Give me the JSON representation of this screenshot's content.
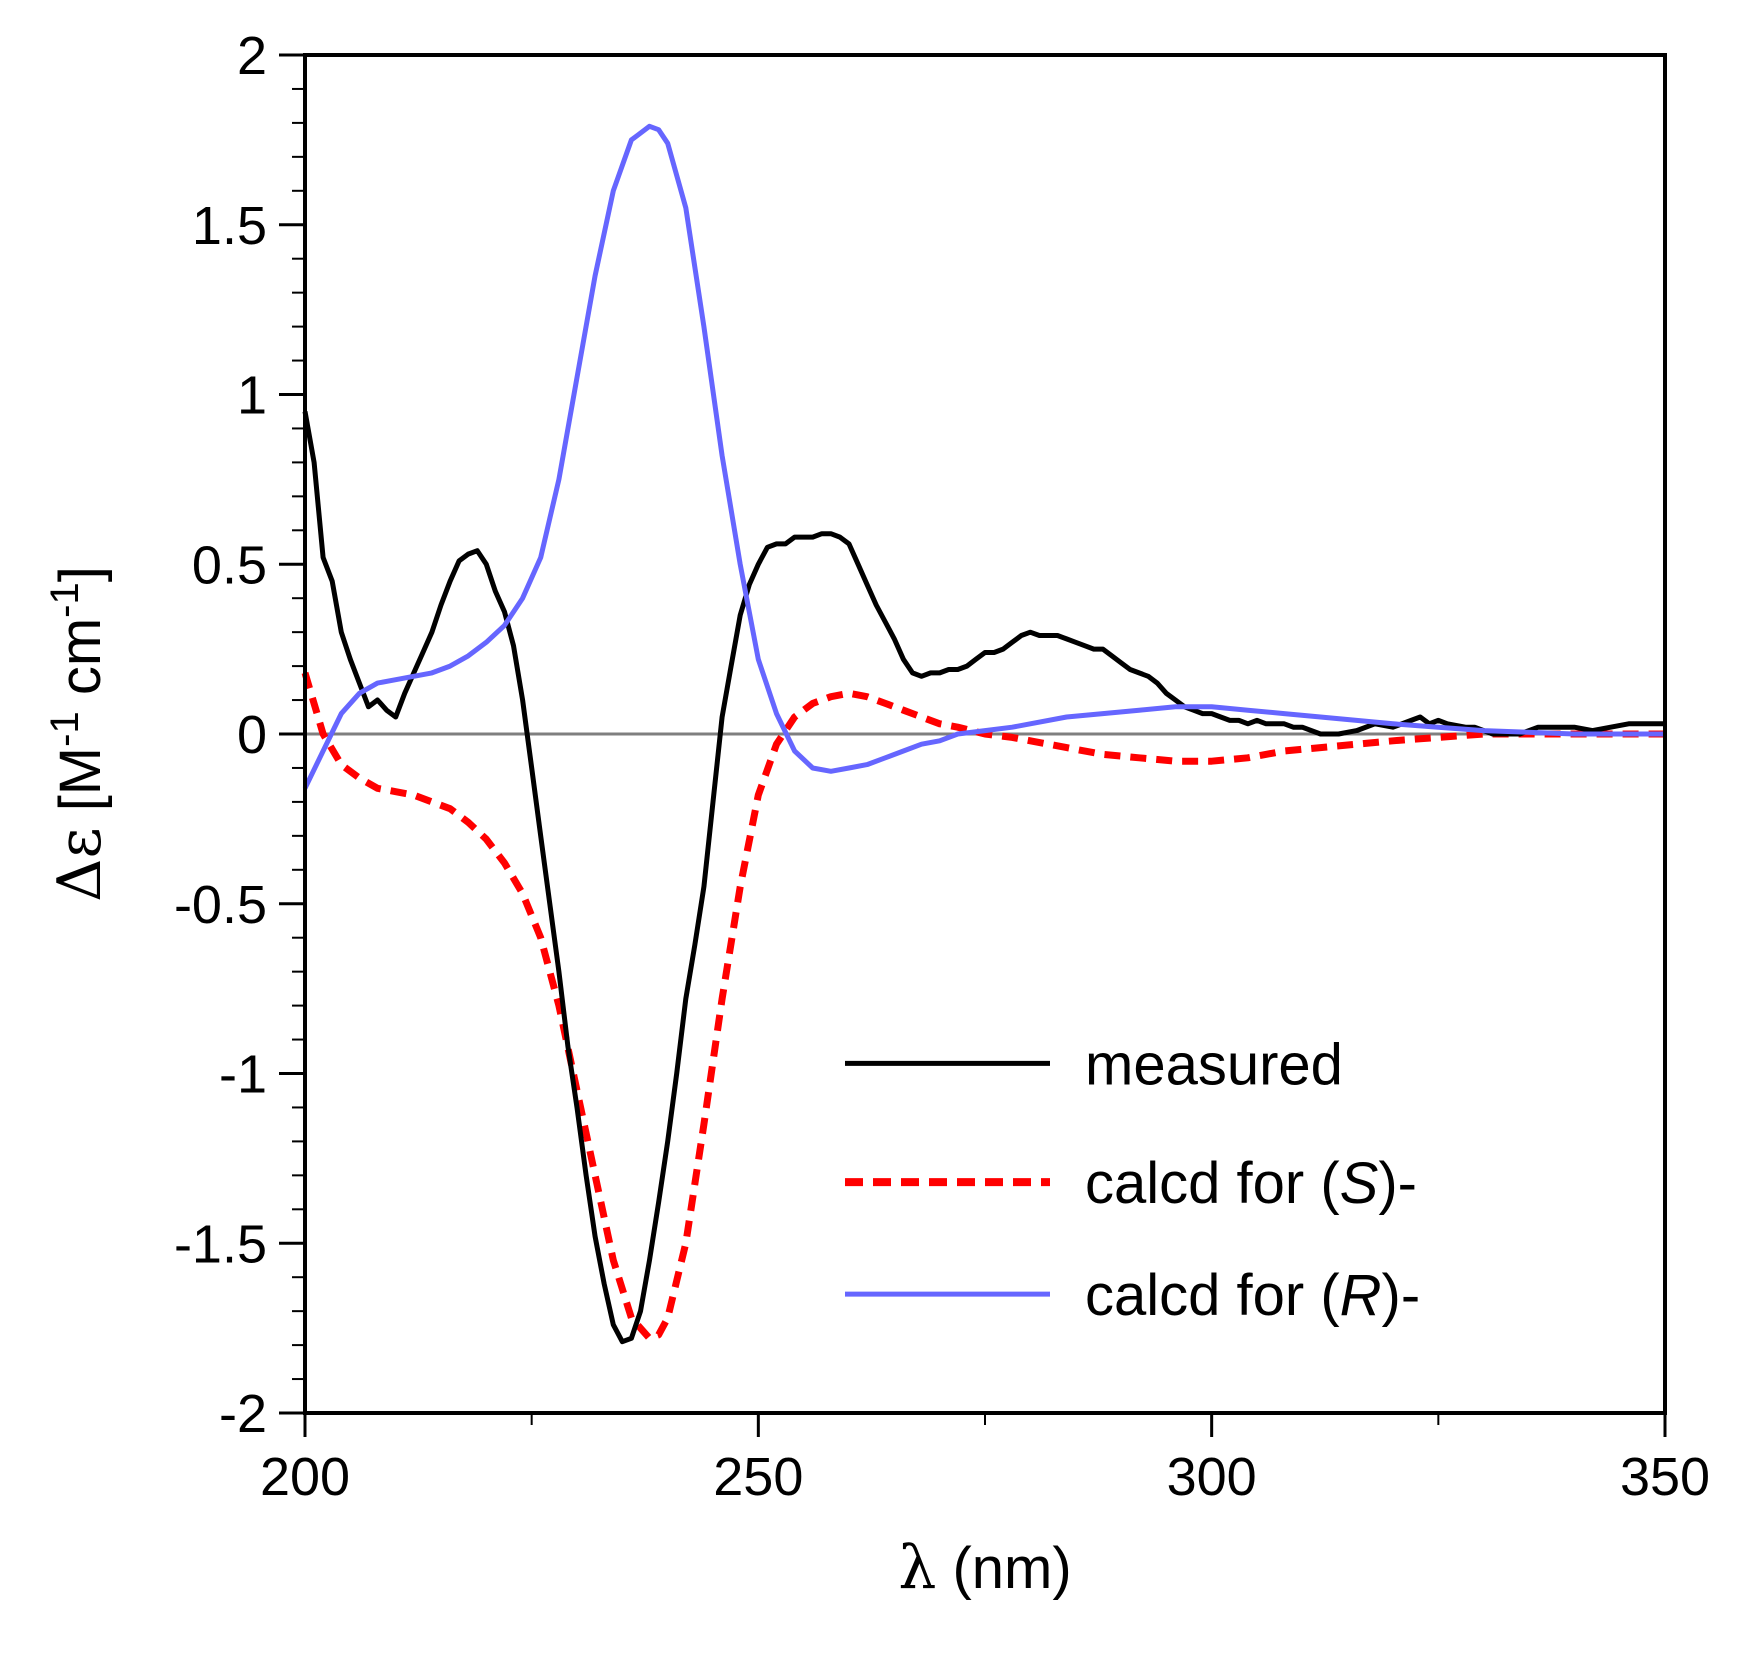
{
  "chart_data": {
    "type": "line",
    "title": "",
    "xlabel_symbol": "λ",
    "xlabel_unit": " (nm)",
    "ylabel_symbol": "Δε",
    "ylabel_unit_a": " [M",
    "ylabel_exp_a": "-1",
    "ylabel_unit_b": " cm",
    "ylabel_exp_b": "-1",
    "ylabel_unit_c": "]",
    "xlim": [
      200,
      350
    ],
    "ylim": [
      -2,
      2
    ],
    "xticks": [
      200,
      250,
      300,
      350
    ],
    "xtick_labels": [
      "200",
      "250",
      "300",
      "350"
    ],
    "yticks": [
      -2,
      -1.5,
      -1,
      -0.5,
      0,
      0.5,
      1,
      1.5,
      2
    ],
    "ytick_labels": [
      "-2",
      "-1.5",
      "-1",
      "-0.5",
      "0",
      "0.5",
      "1",
      "1.5",
      "2"
    ],
    "zero_line_color": "#7f7f7f",
    "legend_position": "bottom-right",
    "series": [
      {
        "name": "measured",
        "color": "#000000",
        "style": "solid",
        "x": [
          200,
          201,
          202,
          203,
          204,
          205,
          206,
          207,
          208,
          209,
          210,
          211,
          212,
          213,
          214,
          215,
          216,
          217,
          218,
          219,
          220,
          221,
          222,
          223,
          224,
          225,
          226,
          227,
          228,
          229,
          230,
          231,
          232,
          233,
          234,
          235,
          236,
          237,
          238,
          239,
          240,
          241,
          242,
          243,
          244,
          245,
          246,
          247,
          248,
          249,
          250,
          251,
          252,
          253,
          254,
          255,
          256,
          257,
          258,
          259,
          260,
          261,
          262,
          263,
          264,
          265,
          266,
          267,
          268,
          269,
          270,
          271,
          272,
          273,
          274,
          275,
          276,
          277,
          278,
          279,
          280,
          281,
          282,
          283,
          284,
          285,
          286,
          287,
          288,
          289,
          290,
          291,
          292,
          293,
          294,
          295,
          296,
          297,
          298,
          299,
          300,
          301,
          302,
          303,
          304,
          305,
          306,
          307,
          308,
          309,
          310,
          312,
          314,
          316,
          318,
          320,
          322,
          323,
          324,
          325,
          326,
          328,
          329,
          330,
          331,
          332,
          333,
          334,
          335,
          336,
          338,
          340,
          342,
          344,
          346,
          348,
          350
        ],
        "y": [
          0.95,
          0.8,
          0.52,
          0.45,
          0.3,
          0.22,
          0.15,
          0.08,
          0.1,
          0.07,
          0.05,
          0.12,
          0.18,
          0.24,
          0.3,
          0.38,
          0.45,
          0.51,
          0.53,
          0.54,
          0.5,
          0.42,
          0.36,
          0.26,
          0.1,
          -0.1,
          -0.3,
          -0.5,
          -0.7,
          -0.92,
          -1.1,
          -1.3,
          -1.48,
          -1.62,
          -1.74,
          -1.79,
          -1.78,
          -1.7,
          -1.55,
          -1.38,
          -1.2,
          -1.0,
          -0.78,
          -0.62,
          -0.45,
          -0.2,
          0.05,
          0.2,
          0.35,
          0.44,
          0.5,
          0.55,
          0.56,
          0.56,
          0.58,
          0.58,
          0.58,
          0.59,
          0.59,
          0.58,
          0.56,
          0.5,
          0.44,
          0.38,
          0.33,
          0.28,
          0.22,
          0.18,
          0.17,
          0.18,
          0.18,
          0.19,
          0.19,
          0.2,
          0.22,
          0.24,
          0.24,
          0.25,
          0.27,
          0.29,
          0.3,
          0.29,
          0.29,
          0.29,
          0.28,
          0.27,
          0.26,
          0.25,
          0.25,
          0.23,
          0.21,
          0.19,
          0.18,
          0.17,
          0.15,
          0.12,
          0.1,
          0.08,
          0.07,
          0.06,
          0.06,
          0.05,
          0.04,
          0.04,
          0.03,
          0.04,
          0.03,
          0.03,
          0.03,
          0.02,
          0.02,
          0.0,
          0.0,
          0.01,
          0.03,
          0.02,
          0.04,
          0.05,
          0.03,
          0.04,
          0.03,
          0.02,
          0.02,
          0.01,
          0.0,
          0.0,
          0.0,
          0.0,
          0.01,
          0.02,
          0.02,
          0.02,
          0.01,
          0.02,
          0.03,
          0.03,
          0.03
        ]
      },
      {
        "name": "calcd for (S)-",
        "legend_prefix": "calcd for (",
        "legend_italic": "S",
        "legend_suffix": ")-",
        "color": "#ff0000",
        "style": "dashed",
        "x": [
          200,
          202,
          204,
          206,
          208,
          210,
          212,
          214,
          216,
          218,
          220,
          222,
          224,
          226,
          228,
          230,
          232,
          234,
          236,
          238,
          239,
          240,
          242,
          244,
          246,
          248,
          250,
          252,
          254,
          256,
          258,
          260,
          262,
          264,
          266,
          268,
          270,
          272,
          275,
          278,
          280,
          284,
          288,
          292,
          296,
          300,
          304,
          308,
          312,
          316,
          320,
          325,
          330,
          340,
          350
        ],
        "y": [
          0.18,
          0.0,
          -0.09,
          -0.13,
          -0.16,
          -0.17,
          -0.18,
          -0.2,
          -0.22,
          -0.26,
          -0.31,
          -0.38,
          -0.47,
          -0.6,
          -0.8,
          -1.05,
          -1.3,
          -1.55,
          -1.72,
          -1.78,
          -1.77,
          -1.72,
          -1.5,
          -1.15,
          -0.78,
          -0.45,
          -0.18,
          -0.03,
          0.05,
          0.09,
          0.11,
          0.12,
          0.11,
          0.09,
          0.07,
          0.05,
          0.03,
          0.02,
          0.0,
          -0.01,
          -0.02,
          -0.04,
          -0.06,
          -0.07,
          -0.08,
          -0.08,
          -0.07,
          -0.05,
          -0.04,
          -0.03,
          -0.02,
          -0.01,
          0.0,
          0.0,
          0.0
        ]
      },
      {
        "name": "calcd for (R)-",
        "legend_prefix": "calcd for (",
        "legend_italic": "R",
        "legend_suffix": ")-",
        "color": "#6666ff",
        "style": "solid",
        "x": [
          200,
          202,
          204,
          206,
          208,
          210,
          212,
          214,
          216,
          218,
          220,
          222,
          224,
          226,
          228,
          230,
          232,
          234,
          236,
          238,
          239,
          240,
          242,
          244,
          246,
          248,
          250,
          252,
          254,
          256,
          258,
          260,
          262,
          264,
          266,
          268,
          270,
          272,
          275,
          278,
          280,
          284,
          288,
          292,
          296,
          300,
          304,
          308,
          312,
          316,
          320,
          325,
          330,
          340,
          350
        ],
        "y": [
          -0.16,
          -0.05,
          0.06,
          0.12,
          0.15,
          0.16,
          0.17,
          0.18,
          0.2,
          0.23,
          0.27,
          0.32,
          0.4,
          0.52,
          0.75,
          1.05,
          1.35,
          1.6,
          1.75,
          1.79,
          1.78,
          1.74,
          1.55,
          1.2,
          0.82,
          0.5,
          0.22,
          0.06,
          -0.05,
          -0.1,
          -0.11,
          -0.1,
          -0.09,
          -0.07,
          -0.05,
          -0.03,
          -0.02,
          0.0,
          0.01,
          0.02,
          0.03,
          0.05,
          0.06,
          0.07,
          0.08,
          0.08,
          0.07,
          0.06,
          0.05,
          0.04,
          0.03,
          0.02,
          0.01,
          0.0,
          0.0
        ]
      }
    ]
  }
}
